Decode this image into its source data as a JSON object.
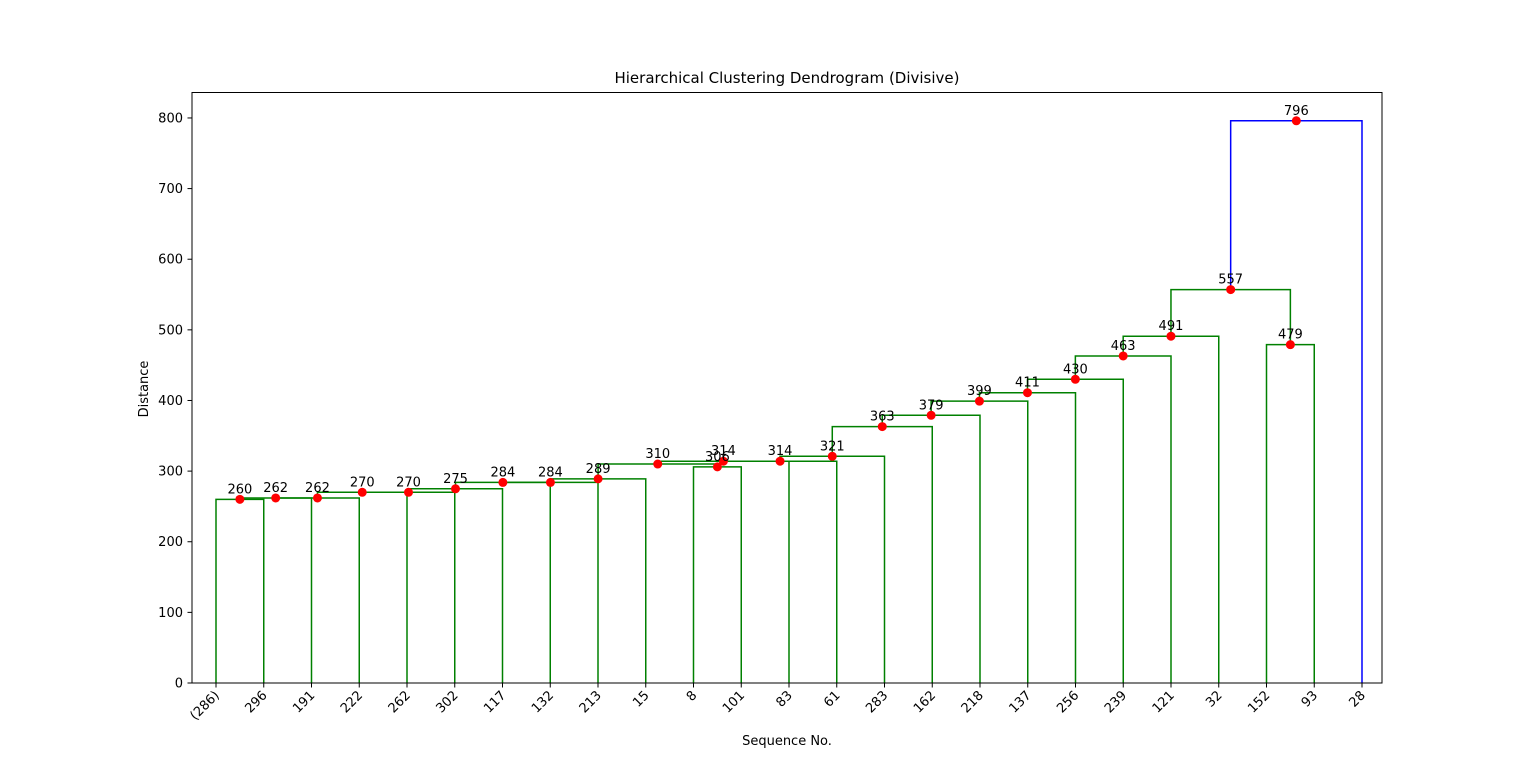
{
  "chart_data": {
    "type": "dendrogram",
    "title": "Hierarchical Clustering Dendrogram (Divisive)",
    "xlabel": "Sequence No.",
    "ylabel": "Distance",
    "ylim": [
      0,
      835
    ],
    "yticks": [
      0,
      100,
      200,
      300,
      400,
      500,
      600,
      700,
      800
    ],
    "leaves": [
      "(286)",
      "296",
      "191",
      "222",
      "262",
      "302",
      "117",
      "132",
      "213",
      "15",
      "8",
      "101",
      "83",
      "61",
      "283",
      "162",
      "218",
      "137",
      "256",
      "239",
      "121",
      "32",
      "152",
      "93",
      "28"
    ],
    "colors": {
      "cluster": "#008000",
      "root": "#0000ff",
      "marker": "#ff0000"
    },
    "merges": [
      {
        "left": "L0",
        "right": "L1",
        "height": 260,
        "label": "260",
        "color": "cluster"
      },
      {
        "left": "M0",
        "right": "L2",
        "height": 262,
        "label": "262",
        "color": "cluster"
      },
      {
        "left": "M1",
        "right": "L3",
        "height": 262,
        "label": "262",
        "color": "cluster"
      },
      {
        "left": "M2",
        "right": "L4",
        "height": 270,
        "label": "270",
        "color": "cluster"
      },
      {
        "left": "M3",
        "right": "L5",
        "height": 270,
        "label": "270",
        "color": "cluster"
      },
      {
        "left": "M4",
        "right": "L6",
        "height": 275,
        "label": "275",
        "color": "cluster"
      },
      {
        "left": "M5",
        "right": "L7",
        "height": 284,
        "label": "284",
        "color": "cluster"
      },
      {
        "left": "M6",
        "right": "L8",
        "height": 284,
        "label": "284",
        "color": "cluster"
      },
      {
        "left": "M7",
        "right": "L9",
        "height": 289,
        "label": "289",
        "color": "cluster"
      },
      {
        "left": "L10",
        "right": "L11",
        "height": 306,
        "label": "306",
        "color": "cluster"
      },
      {
        "left": "M8",
        "right": "M9",
        "height": 310,
        "label": "310",
        "color": "cluster"
      },
      {
        "left": "M10",
        "right": "L12",
        "height": 314,
        "label": "314",
        "color": "cluster"
      },
      {
        "left": "M11",
        "right": "L13",
        "height": 314,
        "label": "314",
        "color": "cluster"
      },
      {
        "left": "M12",
        "right": "L14",
        "height": 321,
        "label": "321",
        "color": "cluster"
      },
      {
        "left": "M13",
        "right": "L15",
        "height": 363,
        "label": "363",
        "color": "cluster"
      },
      {
        "left": "M14",
        "right": "L16",
        "height": 379,
        "label": "379",
        "color": "cluster"
      },
      {
        "left": "M15",
        "right": "L17",
        "height": 399,
        "label": "399",
        "color": "cluster"
      },
      {
        "left": "M16",
        "right": "L18",
        "height": 411,
        "label": "411",
        "color": "cluster"
      },
      {
        "left": "M17",
        "right": "L19",
        "height": 430,
        "label": "430",
        "color": "cluster"
      },
      {
        "left": "M18",
        "right": "L20",
        "height": 463,
        "label": "463",
        "color": "cluster"
      },
      {
        "left": "M19",
        "right": "L21",
        "height": 491,
        "label": "491",
        "color": "cluster"
      },
      {
        "left": "L22",
        "right": "L23",
        "height": 479,
        "label": "479",
        "color": "cluster"
      },
      {
        "left": "M20",
        "right": "M21",
        "height": 557,
        "label": "557",
        "color": "cluster"
      },
      {
        "left": "M22",
        "right": "L24",
        "height": 796,
        "label": "796",
        "color": "root"
      }
    ]
  }
}
